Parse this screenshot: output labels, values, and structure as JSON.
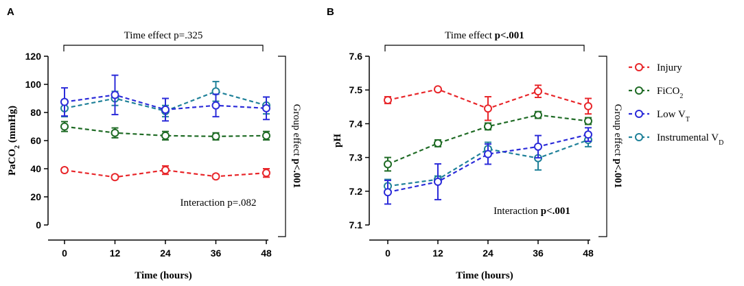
{
  "legend": {
    "items": [
      {
        "label": "Injury",
        "sub": "",
        "color": "#e8262a"
      },
      {
        "label": "FiCO",
        "sub": "2",
        "color": "#1f6b25"
      },
      {
        "label": "Low V",
        "sub": "T",
        "color": "#2b2bd9"
      },
      {
        "label": "Instrumental V",
        "sub": "D",
        "color": "#1f8199"
      }
    ]
  },
  "chart_data": [
    {
      "type": "line",
      "panel_label": "A",
      "title": "",
      "ylabel": "PaCO",
      "ylabel_sub": "2",
      "ylabel_suffix": " (mmHg)",
      "xlabel": "Time (hours)",
      "x": [
        0,
        12,
        24,
        36,
        48
      ],
      "xlim": [
        0,
        48
      ],
      "ylim": [
        0,
        120
      ],
      "yticks": [
        "0",
        "20",
        "40",
        "60",
        "80",
        "100",
        "120"
      ],
      "xticks": [
        "0",
        "12",
        "24",
        "36",
        "48"
      ],
      "series": [
        {
          "name": "Instrumental VD",
          "color": "#1f8199",
          "values": [
            83,
            90,
            81,
            95,
            85
          ],
          "errors": [
            6,
            5,
            4,
            7,
            6
          ]
        },
        {
          "name": "Low VT",
          "color": "#2b2bd9",
          "values": [
            87.5,
            92.5,
            82,
            85,
            83
          ],
          "errors": [
            10,
            14,
            8,
            8,
            8
          ]
        },
        {
          "name": "FiCO2",
          "color": "#1f6b25",
          "values": [
            70,
            65.5,
            63.5,
            63,
            63.5
          ],
          "errors": [
            3.5,
            3.5,
            3,
            2.5,
            3
          ]
        },
        {
          "name": "Injury",
          "color": "#e8262a",
          "values": [
            39,
            34,
            39,
            34.5,
            37
          ],
          "errors": [
            1.5,
            1.5,
            3,
            1.5,
            3
          ]
        }
      ],
      "annotations": {
        "time_effect": "Time effect p=.325",
        "interaction": "Interaction p=.082",
        "group_effect_prefix": "Group effect ",
        "group_effect_p": "p<.001"
      }
    },
    {
      "type": "line",
      "panel_label": "B",
      "title": "",
      "ylabel": "pH",
      "ylabel_sub": "",
      "ylabel_suffix": "",
      "xlabel": "Time (hours)",
      "x": [
        0,
        12,
        24,
        36,
        48
      ],
      "xlim": [
        0,
        48
      ],
      "ylim": [
        7.1,
        7.6
      ],
      "yticks": [
        "7.1",
        "7.2",
        "7.3",
        "7.4",
        "7.5",
        "7.6"
      ],
      "xticks": [
        "0",
        "12",
        "24",
        "36",
        "48"
      ],
      "series": [
        {
          "name": "Instrumental VD",
          "color": "#1f8199",
          "values": [
            7.215,
            7.235,
            7.325,
            7.298,
            7.352
          ],
          "errors": [
            0.02,
            0.01,
            0.02,
            0.035,
            0.02
          ]
        },
        {
          "name": "Low VT",
          "color": "#2b2bd9",
          "values": [
            7.197,
            7.228,
            7.31,
            7.332,
            7.368
          ],
          "errors": [
            0.035,
            0.053,
            0.03,
            0.033,
            0.02
          ]
        },
        {
          "name": "FiCO2",
          "color": "#1f6b25",
          "values": [
            7.28,
            7.342,
            7.392,
            7.426,
            7.408
          ],
          "errors": [
            0.02,
            0.01,
            0.01,
            0.01,
            0.01
          ]
        },
        {
          "name": "Injury",
          "color": "#e8262a",
          "values": [
            7.47,
            7.502,
            7.445,
            7.496,
            7.452
          ],
          "errors": [
            0.01,
            0.003,
            0.035,
            0.018,
            0.023
          ]
        }
      ],
      "annotations": {
        "time_effect_prefix": "Time effect ",
        "time_effect_p": "p<.001",
        "interaction_prefix": "Interaction ",
        "interaction_p": "p<.001",
        "group_effect_prefix": "Group effect ",
        "group_effect_p": "p<.001"
      }
    }
  ]
}
